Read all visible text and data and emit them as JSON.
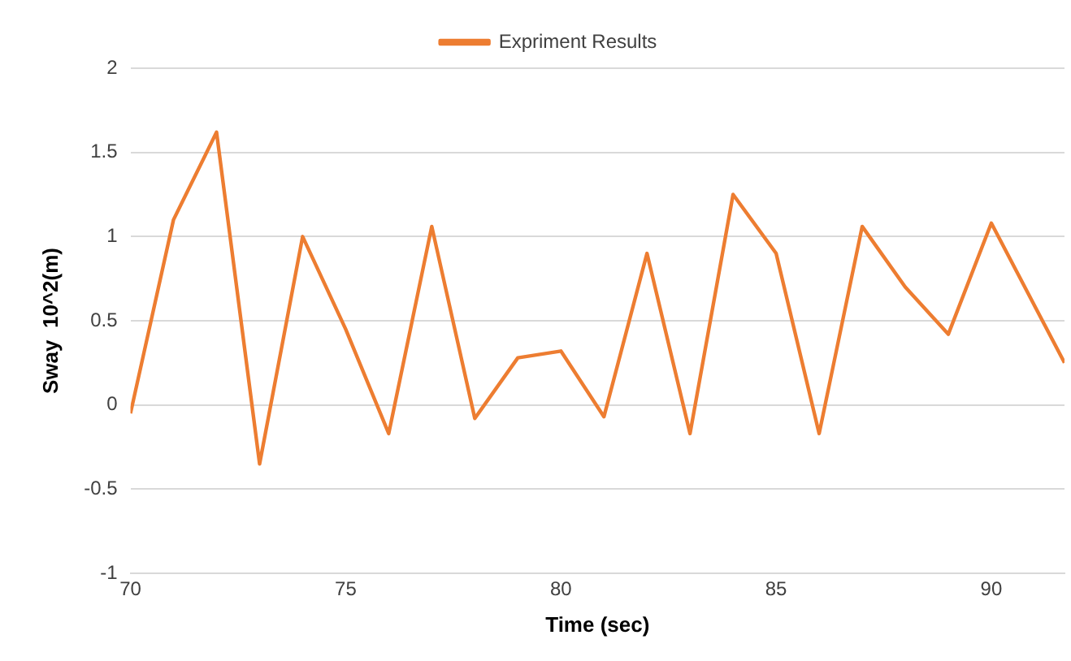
{
  "chart_data": {
    "type": "line",
    "xlabel": "Time (sec)",
    "ylabel": "Sway  10^2(m)",
    "x": [
      70,
      71,
      72,
      73,
      74,
      75,
      76,
      77,
      78,
      79,
      80,
      81,
      82,
      83,
      84,
      85,
      86,
      87,
      88,
      89,
      90,
      91.7
    ],
    "series": [
      {
        "name": "Expriment Results",
        "color": "#ed7d31",
        "values": [
          -0.05,
          1.1,
          1.62,
          -0.35,
          1.0,
          0.45,
          -0.17,
          1.06,
          -0.08,
          0.28,
          0.32,
          -0.07,
          0.9,
          -0.17,
          1.25,
          0.9,
          -0.17,
          1.06,
          0.7,
          0.42,
          1.08,
          0.25
        ]
      }
    ],
    "xlim": [
      70,
      91.7
    ],
    "xticks": [
      70,
      75,
      80,
      85,
      90
    ],
    "ylim": [
      -1,
      2
    ],
    "yticks": [
      -1,
      -0.5,
      0,
      0.5,
      1,
      1.5,
      2
    ],
    "grid": "y",
    "legend": "top",
    "marker": "none",
    "line_style": "solid"
  }
}
